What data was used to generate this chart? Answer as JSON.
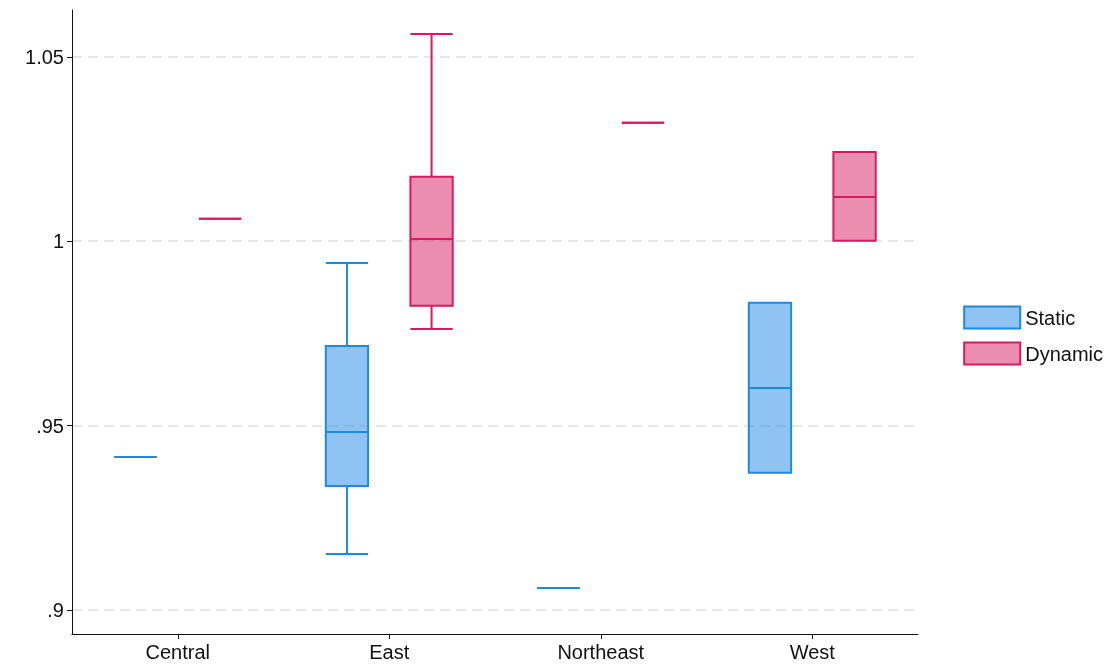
{
  "chart_data": {
    "type": "box",
    "categories": [
      "Central",
      "East",
      "Northeast",
      "West"
    ],
    "series": [
      {
        "name": "Static",
        "color": "#1e88e5",
        "boxes": [
          {
            "low": 0.9415,
            "q1": 0.9415,
            "median": 0.9415,
            "q3": 0.9415,
            "high": 0.9415
          },
          {
            "low": 0.9152,
            "q1": 0.9336,
            "median": 0.9483,
            "q3": 0.9716,
            "high": 0.9941
          },
          {
            "low": 0.906,
            "q1": 0.906,
            "median": 0.906,
            "q3": 0.906,
            "high": 0.906
          },
          {
            "low": 0.9372,
            "q1": 0.9372,
            "median": 0.9602,
            "q3": 0.9833,
            "high": 0.9833
          }
        ]
      },
      {
        "name": "Dynamic",
        "color": "#d81b60",
        "boxes": [
          {
            "low": 1.0061,
            "q1": 1.0061,
            "median": 1.0061,
            "q3": 1.0061,
            "high": 1.0061
          },
          {
            "low": 0.9762,
            "q1": 0.9825,
            "median": 1.0006,
            "q3": 1.0175,
            "high": 1.0562
          },
          {
            "low": 1.0321,
            "q1": 1.0321,
            "median": 1.0321,
            "q3": 1.0321,
            "high": 1.0321
          },
          {
            "low": 1.0001,
            "q1": 1.0001,
            "median": 1.012,
            "q3": 1.0242,
            "high": 1.0242
          }
        ]
      }
    ],
    "ylim": [
      0.8935,
      1.0627
    ],
    "yticks": [
      {
        "value": 0.9,
        "label": ".9"
      },
      {
        "value": 0.95,
        "label": ".95"
      },
      {
        "value": 1,
        "label": "1"
      },
      {
        "value": 1.05,
        "label": "1.05"
      }
    ],
    "grid": "y",
    "legend": "right"
  }
}
